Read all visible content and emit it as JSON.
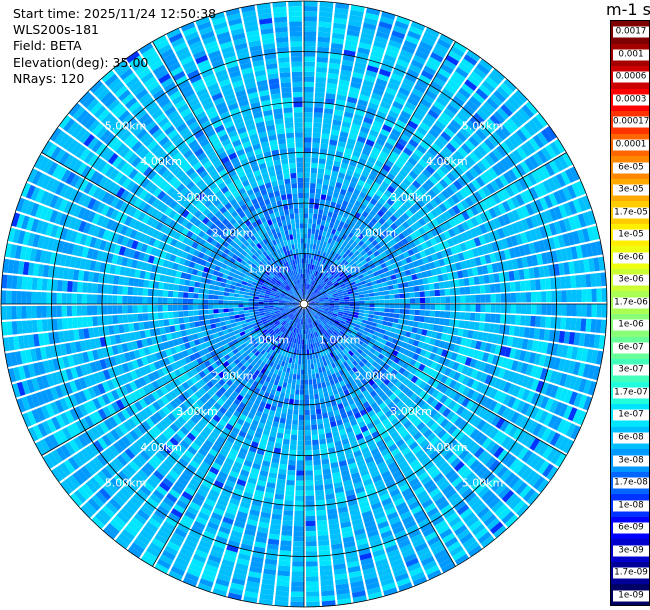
{
  "info": {
    "start_time": "Start time: 2025/11/24 12:50:38",
    "instrument": "WLS200s-181",
    "field": "Field: BETA",
    "elevation": "Elevation(deg): 35.00",
    "nrays": "NRays: 120"
  },
  "colorbar": {
    "unit_title": "m-1 sr-1",
    "labels": [
      "0.0017",
      "0.001",
      "0.0006",
      "0.0003",
      "0.00017",
      "0.0001",
      "6e-05",
      "3e-05",
      "1.7e-05",
      "1e-05",
      "6e-06",
      "3e-06",
      "1.7e-06",
      "1e-06",
      "6e-07",
      "3e-07",
      "1.7e-07",
      "1e-07",
      "6e-08",
      "3e-08",
      "1.7e-08",
      "1e-08",
      "6e-09",
      "3e-09",
      "1.7e-09",
      "1e-09"
    ],
    "colors": [
      "#7f0000",
      "#a50000",
      "#cc0000",
      "#ff0000",
      "#ff3300",
      "#ff6600",
      "#ff8800",
      "#ffaa00",
      "#ffcc00",
      "#ffee00",
      "#eeff11",
      "#ccff33",
      "#aaff55",
      "#88ff77",
      "#66ff99",
      "#44ffbb",
      "#22ffdd",
      "#00e5ff",
      "#00bfff",
      "#0099ff",
      "#0066ff",
      "#0033ff",
      "#0000ff",
      "#0000cc",
      "#000099",
      "#000066"
    ]
  },
  "chart_data": {
    "type": "heatmap",
    "title": "",
    "field": "BETA",
    "unit": "m-1 sr-1",
    "n_rays": 120,
    "elevation_deg": 35.0,
    "range_rings_km": [
      1.0,
      2.0,
      3.0,
      4.0,
      5.0
    ],
    "ring_labels": [
      "1.00km",
      "2.00km",
      "3.00km",
      "4.00km",
      "5.00km"
    ],
    "max_range_km": 6.0,
    "azimuth_spokes_deg": [
      0,
      30,
      60,
      90,
      120,
      150,
      180,
      210,
      240,
      270,
      300,
      330
    ],
    "value_range": [
      1e-09,
      0.0017
    ],
    "scale": "log",
    "dominant_value_range_by_range_km": [
      {
        "range_km": [
          0.0,
          1.0
        ],
        "beta": [
          1e-08,
          3e-08
        ]
      },
      {
        "range_km": [
          1.0,
          2.5
        ],
        "beta": [
          1.7e-08,
          6e-08
        ]
      },
      {
        "range_km": [
          2.5,
          6.0
        ],
        "beta": [
          3e-08,
          1e-07
        ]
      }
    ]
  }
}
